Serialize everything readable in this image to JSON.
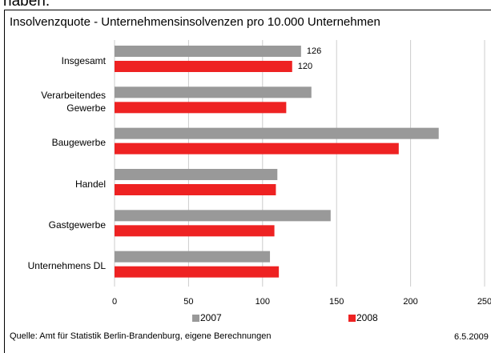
{
  "clipped_text": "haben.",
  "chart_data": {
    "type": "hbar",
    "title": "Insolvenzquote - Unternehmensinsolvenzen pro 10.000 Unternehmen",
    "categories": [
      "Insgesamt",
      "Verarbeitendes\nGewerbe",
      "Baugewerbe",
      "Handel",
      "Gastgewerbe",
      "Unternehmens DL"
    ],
    "series": [
      {
        "name": "2007",
        "color": "#999999",
        "values": [
          126,
          133,
          219,
          110,
          146,
          105
        ]
      },
      {
        "name": "2008",
        "color": "#ee2222",
        "values": [
          120,
          116,
          192,
          109,
          108,
          111
        ]
      }
    ],
    "value_labels_at": [
      0
    ],
    "xlim": [
      0,
      250
    ],
    "xticks": [
      0,
      50,
      100,
      150,
      200,
      250
    ],
    "grid": true,
    "legend": "bottom",
    "source": "Quelle: Amt für Statistik Berlin-Brandenburg, eigene Berechnungen",
    "date": "6.5.2009"
  }
}
